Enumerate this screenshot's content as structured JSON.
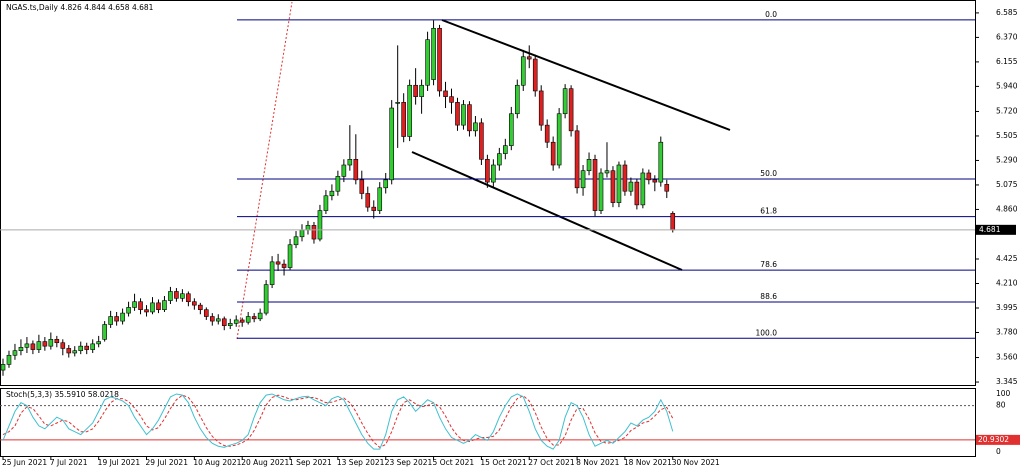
{
  "chart_data": {
    "type": "candlestick",
    "title": "NGAS.ts,Daily",
    "bull_color": "#32cd32",
    "bear_color": "#e02020",
    "categories": [
      "25 Jun 2021",
      null,
      null,
      null,
      null,
      null,
      null,
      null,
      "7 Jul 2021",
      null,
      null,
      null,
      null,
      null,
      null,
      null,
      "19 Jul 2021",
      null,
      null,
      null,
      null,
      null,
      null,
      null,
      "29 Jul 2021",
      null,
      null,
      null,
      null,
      null,
      null,
      null,
      "10 Aug 2021",
      null,
      null,
      null,
      null,
      null,
      null,
      null,
      "20 Aug 2021",
      null,
      null,
      null,
      null,
      null,
      null,
      null,
      "1 Sep 2021",
      null,
      null,
      null,
      null,
      null,
      null,
      null,
      "13 Sep 2021",
      null,
      null,
      null,
      null,
      null,
      null,
      null,
      "23 Sep 2021",
      null,
      null,
      null,
      null,
      null,
      null,
      null,
      "5 Oct 2021",
      null,
      null,
      null,
      null,
      null,
      null,
      null,
      "15 Oct 2021",
      null,
      null,
      null,
      null,
      null,
      null,
      null,
      "27 Oct 2021",
      null,
      null,
      null,
      null,
      null,
      null,
      null,
      "8 Nov 2021",
      null,
      null,
      null,
      null,
      null,
      null,
      null,
      "18 Nov 2021",
      null,
      null,
      null,
      null,
      null,
      null,
      null,
      "30 Nov 2021"
    ],
    "candles": [
      [
        3.45,
        3.55,
        3.4,
        3.5
      ],
      [
        3.5,
        3.62,
        3.47,
        3.58
      ],
      [
        3.58,
        3.68,
        3.54,
        3.62
      ],
      [
        3.62,
        3.72,
        3.58,
        3.65
      ],
      [
        3.65,
        3.74,
        3.6,
        3.68
      ],
      [
        3.68,
        3.71,
        3.59,
        3.63
      ],
      [
        3.63,
        3.76,
        3.6,
        3.7
      ],
      [
        3.7,
        3.74,
        3.62,
        3.66
      ],
      [
        3.66,
        3.78,
        3.63,
        3.72
      ],
      [
        3.72,
        3.75,
        3.65,
        3.69
      ],
      [
        3.69,
        3.72,
        3.58,
        3.64
      ],
      [
        3.64,
        3.67,
        3.56,
        3.6
      ],
      [
        3.6,
        3.66,
        3.57,
        3.62
      ],
      [
        3.62,
        3.7,
        3.59,
        3.66
      ],
      [
        3.66,
        3.69,
        3.59,
        3.63
      ],
      [
        3.63,
        3.72,
        3.6,
        3.68
      ],
      [
        3.68,
        3.75,
        3.65,
        3.7
      ],
      [
        3.72,
        3.88,
        3.7,
        3.85
      ],
      [
        3.85,
        3.97,
        3.82,
        3.92
      ],
      [
        3.92,
        3.96,
        3.84,
        3.88
      ],
      [
        3.88,
        3.99,
        3.85,
        3.95
      ],
      [
        3.95,
        4.05,
        3.92,
        4.0
      ],
      [
        4.0,
        4.12,
        3.97,
        4.05
      ],
      [
        4.05,
        4.08,
        3.94,
        3.98
      ],
      [
        3.98,
        4.02,
        3.92,
        3.96
      ],
      [
        3.96,
        4.09,
        3.94,
        4.04
      ],
      [
        4.04,
        4.07,
        3.95,
        3.98
      ],
      [
        3.98,
        4.1,
        3.96,
        4.06
      ],
      [
        4.06,
        4.18,
        4.03,
        4.14
      ],
      [
        4.14,
        4.17,
        4.05,
        4.08
      ],
      [
        4.08,
        4.16,
        4.05,
        4.12
      ],
      [
        4.12,
        4.14,
        4.01,
        4.05
      ],
      [
        4.05,
        4.08,
        3.98,
        4.02
      ],
      [
        4.02,
        4.04,
        3.94,
        3.98
      ],
      [
        3.98,
        4.0,
        3.89,
        3.92
      ],
      [
        3.92,
        3.95,
        3.84,
        3.88
      ],
      [
        3.88,
        3.94,
        3.85,
        3.9
      ],
      [
        3.9,
        3.92,
        3.8,
        3.84
      ],
      [
        3.84,
        3.9,
        3.81,
        3.86
      ],
      [
        3.86,
        3.93,
        3.83,
        3.89
      ],
      [
        3.89,
        3.91,
        3.83,
        3.87
      ],
      [
        3.87,
        3.96,
        3.85,
        3.92
      ],
      [
        3.92,
        3.95,
        3.87,
        3.9
      ],
      [
        3.9,
        3.99,
        3.88,
        3.95
      ],
      [
        3.95,
        4.24,
        3.93,
        4.2
      ],
      [
        4.2,
        4.45,
        4.17,
        4.4
      ],
      [
        4.4,
        4.47,
        4.32,
        4.38
      ],
      [
        4.38,
        4.42,
        4.28,
        4.35
      ],
      [
        4.35,
        4.6,
        4.33,
        4.55
      ],
      [
        4.55,
        4.67,
        4.52,
        4.62
      ],
      [
        4.62,
        4.73,
        4.58,
        4.68
      ],
      [
        4.68,
        4.76,
        4.64,
        4.72
      ],
      [
        4.72,
        4.75,
        4.56,
        4.6
      ],
      [
        4.6,
        4.9,
        4.58,
        4.85
      ],
      [
        4.85,
        5.03,
        4.82,
        4.98
      ],
      [
        4.98,
        5.08,
        4.94,
        5.02
      ],
      [
        5.02,
        5.2,
        4.98,
        5.15
      ],
      [
        5.15,
        5.3,
        5.1,
        5.25
      ],
      [
        5.25,
        5.6,
        5.2,
        5.3
      ],
      [
        5.3,
        5.52,
        5.08,
        5.12
      ],
      [
        5.12,
        5.2,
        4.95,
        5.0
      ],
      [
        5.0,
        5.06,
        4.84,
        4.88
      ],
      [
        4.88,
        4.94,
        4.78,
        4.85
      ],
      [
        4.85,
        5.1,
        4.82,
        5.05
      ],
      [
        5.05,
        5.18,
        5.0,
        5.12
      ],
      [
        5.12,
        5.82,
        5.08,
        5.75
      ],
      [
        5.8,
        6.3,
        5.4,
        5.8
      ],
      [
        5.8,
        5.88,
        5.45,
        5.5
      ],
      [
        5.5,
        6.0,
        5.46,
        5.95
      ],
      [
        5.95,
        6.1,
        5.78,
        5.85
      ],
      [
        5.85,
        6.0,
        5.7,
        5.95
      ],
      [
        5.95,
        6.42,
        5.9,
        6.35
      ],
      [
        6.0,
        6.52,
        5.95,
        6.45
      ],
      [
        6.45,
        6.48,
        5.85,
        5.9
      ],
      [
        5.9,
        5.98,
        5.75,
        5.85
      ],
      [
        5.85,
        5.92,
        5.7,
        5.8
      ],
      [
        5.8,
        5.84,
        5.55,
        5.6
      ],
      [
        5.6,
        5.82,
        5.56,
        5.78
      ],
      [
        5.78,
        5.81,
        5.5,
        5.55
      ],
      [
        5.55,
        5.68,
        5.5,
        5.62
      ],
      [
        5.62,
        5.66,
        5.25,
        5.3
      ],
      [
        5.3,
        5.34,
        5.05,
        5.1
      ],
      [
        5.1,
        5.3,
        5.06,
        5.25
      ],
      [
        5.25,
        5.4,
        5.2,
        5.35
      ],
      [
        5.35,
        5.48,
        5.3,
        5.42
      ],
      [
        5.42,
        5.76,
        5.38,
        5.7
      ],
      [
        5.7,
        6.0,
        5.66,
        5.95
      ],
      [
        5.95,
        6.26,
        5.9,
        6.2
      ],
      [
        6.2,
        6.3,
        6.1,
        6.18
      ],
      [
        6.18,
        6.22,
        5.85,
        5.9
      ],
      [
        5.9,
        5.95,
        5.55,
        5.6
      ],
      [
        5.6,
        5.65,
        5.4,
        5.45
      ],
      [
        5.45,
        5.5,
        5.2,
        5.25
      ],
      [
        5.25,
        5.75,
        5.22,
        5.7
      ],
      [
        5.7,
        5.96,
        5.66,
        5.92
      ],
      [
        5.92,
        5.95,
        5.5,
        5.55
      ],
      [
        5.55,
        5.6,
        5.0,
        5.05
      ],
      [
        5.05,
        5.25,
        4.98,
        5.2
      ],
      [
        5.2,
        5.36,
        5.16,
        5.3
      ],
      [
        5.3,
        5.34,
        4.8,
        4.85
      ],
      [
        4.85,
        5.22,
        4.82,
        5.18
      ],
      [
        5.18,
        5.45,
        5.14,
        5.2
      ],
      [
        5.2,
        5.24,
        4.88,
        4.92
      ],
      [
        4.92,
        5.28,
        4.88,
        5.25
      ],
      [
        5.25,
        5.29,
        4.98,
        5.02
      ],
      [
        5.02,
        5.14,
        4.98,
        5.1
      ],
      [
        5.1,
        5.13,
        4.86,
        4.9
      ],
      [
        4.9,
        5.22,
        4.87,
        5.18
      ],
      [
        5.18,
        5.21,
        5.08,
        5.12
      ],
      [
        5.12,
        5.16,
        5.02,
        5.1
      ],
      [
        5.1,
        5.5,
        5.06,
        5.45
      ],
      [
        5.08,
        5.12,
        4.96,
        5.02
      ],
      [
        4.826,
        4.844,
        4.658,
        4.681
      ]
    ],
    "ylim": [
      3.319,
      6.672
    ],
    "yticks": [
      6.585,
      {
        "value": 6.37,
        "label": "6.370"
      },
      6.155,
      {
        "value": 5.94,
        "label": "5.940"
      },
      {
        "value": 5.72,
        "label": "5.720"
      },
      5.505,
      {
        "value": 5.29,
        "label": "5.290"
      },
      5.075,
      {
        "value": 4.86,
        "label": "4.860"
      },
      4.425,
      {
        "value": 4.21,
        "label": "4.210"
      },
      3.995,
      {
        "value": 3.78,
        "label": "3.780"
      },
      {
        "value": 3.56,
        "label": "3.560"
      },
      3.345
    ],
    "fib_levels": [
      {
        "label": "0.0",
        "price": 6.524
      },
      {
        "label": "50.0",
        "price": 5.127
      },
      {
        "label": "61.8",
        "price": 4.797
      },
      {
        "label": "78.6",
        "price": 4.327
      },
      {
        "label": "88.6",
        "price": 4.048
      },
      {
        "label": "100.0",
        "price": 3.729
      }
    ],
    "stoch": {
      "title": "Stoch(5,3,3)",
      "ylim": [
        -10.3,
        110.3
      ],
      "yticks": [
        100,
        80,
        0
      ],
      "level": {
        "value": 20.9302,
        "label": "20.9302"
      },
      "main": {
        "color": "#3fc0d0",
        "values": [
          20,
          45,
          70,
          85,
          80,
          60,
          45,
          40,
          50,
          60,
          55,
          40,
          35,
          30,
          40,
          50,
          70,
          90,
          95,
          92,
          88,
          80,
          60,
          45,
          30,
          40,
          55,
          75,
          95,
          100,
          98,
          85,
          60,
          40,
          25,
          15,
          10,
          8,
          12,
          15,
          20,
          30,
          60,
          85,
          98,
          100,
          95,
          90,
          88,
          92,
          95,
          96,
          90,
          85,
          80,
          92,
          96,
          90,
          70,
          50,
          30,
          15,
          5,
          5,
          30,
          70,
          90,
          95,
          85,
          70,
          80,
          90,
          85,
          60,
          40,
          25,
          20,
          15,
          20,
          30,
          25,
          20,
          35,
          60,
          80,
          95,
          100,
          95,
          70,
          40,
          20,
          10,
          5,
          20,
          60,
          85,
          80,
          60,
          30,
          10,
          15,
          20,
          15,
          25,
          35,
          50,
          45,
          55,
          60,
          70,
          90,
          70,
          35.591
        ],
        "last_label": "35.5910"
      },
      "signal": {
        "color": "#e03030",
        "values": [
          30,
          35,
          45,
          67,
          78,
          75,
          62,
          48,
          45,
          50,
          55,
          52,
          43,
          35,
          35,
          40,
          53,
          70,
          85,
          92,
          92,
          87,
          76,
          62,
          45,
          38,
          42,
          57,
          75,
          90,
          98,
          94,
          81,
          61,
          42,
          27,
          17,
          11,
          10,
          12,
          16,
          22,
          37,
          58,
          81,
          94,
          98,
          95,
          91,
          90,
          92,
          94,
          94,
          90,
          85,
          86,
          89,
          93,
          85,
          70,
          50,
          32,
          17,
          8,
          13,
          35,
          63,
          85,
          90,
          83,
          78,
          80,
          85,
          78,
          62,
          42,
          28,
          20,
          18,
          22,
          25,
          25,
          27,
          38,
          58,
          78,
          92,
          97,
          88,
          68,
          43,
          23,
          12,
          12,
          28,
          55,
          75,
          75,
          57,
          33,
          18,
          15,
          17,
          20,
          25,
          37,
          43,
          50,
          53,
          62,
          73,
          77,
          58.0218
        ],
        "last_label": "58.0218"
      }
    }
  }
}
